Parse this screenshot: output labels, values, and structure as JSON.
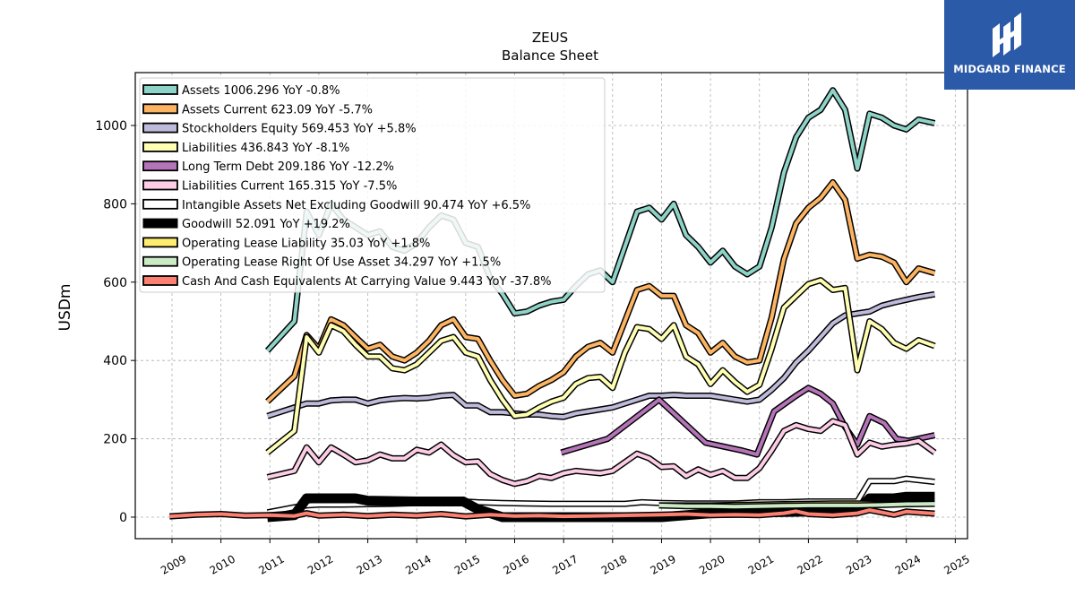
{
  "chart_data": {
    "type": "line",
    "title": "ZEUS",
    "subtitle": "Balance  Sheet",
    "xlabel": "",
    "ylabel": "USDm",
    "xlim": [
      2008.25,
      2025.25
    ],
    "ylim": [
      -55,
      1135
    ],
    "yticks": [
      0,
      200,
      400,
      600,
      800,
      1000
    ],
    "xticks": [
      "2009",
      "2010",
      "2011",
      "2012",
      "2013",
      "2014",
      "2015",
      "2016",
      "2017",
      "2018",
      "2019",
      "2020",
      "2021",
      "2022",
      "2023",
      "2024",
      "2025"
    ],
    "grid": true,
    "legend_position": "top-left",
    "series": [
      {
        "name": "Assets  1006.296 YoY -0.8%",
        "color": "#8dd3c7",
        "x": [
          2010.95,
          2011.5,
          2011.75,
          2012.0,
          2012.25,
          2012.5,
          2012.75,
          2013.0,
          2013.25,
          2013.5,
          2013.75,
          2014.0,
          2014.25,
          2014.5,
          2014.75,
          2015.0,
          2015.25,
          2015.5,
          2015.75,
          2016.0,
          2016.25,
          2016.5,
          2016.75,
          2017.0,
          2017.25,
          2017.5,
          2017.75,
          2018.0,
          2018.5,
          2018.75,
          2019.0,
          2019.25,
          2019.5,
          2019.75,
          2020.0,
          2020.25,
          2020.5,
          2020.75,
          2021.0,
          2021.25,
          2021.5,
          2021.75,
          2022.0,
          2022.25,
          2022.5,
          2022.75,
          2023.0,
          2023.25,
          2023.5,
          2023.75,
          2024.0,
          2024.25,
          2024.58
        ],
        "y": [
          425,
          500,
          780,
          720,
          800,
          760,
          740,
          720,
          730,
          690,
          680,
          700,
          740,
          770,
          760,
          700,
          690,
          610,
          570,
          520,
          525,
          540,
          550,
          555,
          590,
          620,
          630,
          600,
          780,
          790,
          760,
          800,
          720,
          690,
          650,
          680,
          640,
          620,
          640,
          740,
          880,
          970,
          1020,
          1040,
          1090,
          1040,
          890,
          1030,
          1020,
          1000,
          990,
          1015,
          1006
        ]
      },
      {
        "name": "Assets Current  623.09 YoY -5.7%",
        "color": "#fdb462",
        "x": [
          2010.95,
          2011.5,
          2011.75,
          2012.0,
          2012.25,
          2012.5,
          2012.75,
          2013.0,
          2013.25,
          2013.5,
          2013.75,
          2014.0,
          2014.25,
          2014.5,
          2014.75,
          2015.0,
          2015.25,
          2015.5,
          2015.75,
          2016.0,
          2016.25,
          2016.5,
          2016.75,
          2017.0,
          2017.25,
          2017.5,
          2017.75,
          2018.0,
          2018.25,
          2018.5,
          2018.75,
          2019.0,
          2019.25,
          2019.5,
          2019.75,
          2020.0,
          2020.25,
          2020.5,
          2020.75,
          2021.0,
          2021.25,
          2021.5,
          2021.75,
          2022.0,
          2022.25,
          2022.5,
          2022.75,
          2023.0,
          2023.25,
          2023.5,
          2023.75,
          2024.0,
          2024.25,
          2024.58
        ],
        "y": [
          295,
          360,
          465,
          430,
          505,
          490,
          460,
          430,
          440,
          410,
          400,
          420,
          450,
          490,
          505,
          460,
          455,
          400,
          350,
          310,
          315,
          335,
          350,
          370,
          410,
          435,
          445,
          420,
          500,
          580,
          590,
          565,
          565,
          490,
          470,
          420,
          445,
          410,
          395,
          400,
          510,
          660,
          750,
          790,
          815,
          855,
          810,
          660,
          670,
          665,
          650,
          600,
          635,
          623
        ]
      },
      {
        "name": "Stockholders Equity  569.453 YoY +5.8%",
        "color": "#bebada",
        "x": [
          2010.95,
          2011.5,
          2011.75,
          2012.0,
          2012.25,
          2012.5,
          2012.75,
          2013.0,
          2013.25,
          2013.5,
          2013.75,
          2014.0,
          2014.25,
          2014.5,
          2014.75,
          2015.0,
          2015.25,
          2015.5,
          2015.75,
          2016.0,
          2016.25,
          2016.5,
          2016.75,
          2017.0,
          2017.25,
          2017.5,
          2017.75,
          2018.0,
          2018.25,
          2018.5,
          2018.75,
          2019.0,
          2019.25,
          2019.5,
          2019.75,
          2020.0,
          2020.25,
          2020.5,
          2020.75,
          2021.0,
          2021.25,
          2021.5,
          2021.75,
          2022.0,
          2022.25,
          2022.5,
          2022.75,
          2023.0,
          2023.25,
          2023.5,
          2023.75,
          2024.0,
          2024.25,
          2024.58
        ],
        "y": [
          258,
          280,
          290,
          290,
          298,
          300,
          300,
          290,
          298,
          302,
          304,
          303,
          305,
          310,
          312,
          285,
          285,
          268,
          268,
          265,
          262,
          262,
          258,
          256,
          265,
          270,
          275,
          280,
          290,
          300,
          310,
          310,
          312,
          310,
          310,
          310,
          305,
          300,
          295,
          300,
          325,
          355,
          395,
          425,
          460,
          495,
          515,
          520,
          525,
          540,
          548,
          555,
          562,
          569
        ]
      },
      {
        "name": "Liabilities  436.843 YoY -8.1%",
        "color": "#ffffb3",
        "x": [
          2010.95,
          2011.5,
          2011.75,
          2012.0,
          2012.25,
          2012.5,
          2012.75,
          2013.0,
          2013.25,
          2013.5,
          2013.75,
          2014.0,
          2014.25,
          2014.5,
          2014.75,
          2015.0,
          2015.25,
          2015.5,
          2015.75,
          2016.0,
          2016.25,
          2016.5,
          2016.75,
          2017.0,
          2017.25,
          2017.5,
          2017.75,
          2018.0,
          2018.25,
          2018.5,
          2018.75,
          2019.0,
          2019.25,
          2019.5,
          2019.75,
          2020.0,
          2020.25,
          2020.5,
          2020.75,
          2021.0,
          2021.25,
          2021.5,
          2021.75,
          2022.0,
          2022.25,
          2022.5,
          2022.75,
          2023.0,
          2023.25,
          2023.5,
          2023.75,
          2024.0,
          2024.25,
          2024.58
        ],
        "y": [
          165,
          220,
          460,
          420,
          490,
          475,
          440,
          410,
          410,
          380,
          375,
          390,
          420,
          450,
          460,
          420,
          410,
          350,
          300,
          258,
          262,
          280,
          295,
          305,
          340,
          355,
          358,
          330,
          420,
          485,
          480,
          455,
          490,
          410,
          390,
          340,
          375,
          345,
          320,
          338,
          430,
          535,
          565,
          595,
          605,
          580,
          585,
          375,
          500,
          480,
          445,
          430,
          452,
          437
        ]
      },
      {
        "name": "Long Term Debt  209.186 YoY -12.2%",
        "color": "#b573b8",
        "x": [
          2016.95,
          2017.9,
          2018.95,
          2019.9,
          2020.65,
          2020.95,
          2021.3,
          2021.75,
          2022.0,
          2022.25,
          2022.5,
          2022.75,
          2023.0,
          2023.25,
          2023.55,
          2023.8,
          2024.05,
          2024.58
        ],
        "y": [
          165,
          200,
          300,
          190,
          170,
          160,
          270,
          310,
          330,
          315,
          290,
          230,
          185,
          258,
          240,
          200,
          195,
          209
        ]
      },
      {
        "name": "Liabilities Current  165.315 YoY -7.5%",
        "color": "#fccde5",
        "x": [
          2010.95,
          2011.5,
          2011.75,
          2012.0,
          2012.25,
          2012.5,
          2012.75,
          2013.0,
          2013.25,
          2013.5,
          2013.75,
          2014.0,
          2014.25,
          2014.5,
          2014.75,
          2015.0,
          2015.25,
          2015.5,
          2015.75,
          2016.0,
          2016.25,
          2016.5,
          2016.75,
          2017.0,
          2017.25,
          2017.5,
          2017.75,
          2018.0,
          2018.25,
          2018.5,
          2018.75,
          2019.0,
          2019.25,
          2019.5,
          2019.75,
          2020.0,
          2020.25,
          2020.5,
          2020.75,
          2021.0,
          2021.25,
          2021.5,
          2021.75,
          2022.0,
          2022.25,
          2022.5,
          2022.75,
          2023.0,
          2023.25,
          2023.5,
          2023.75,
          2024.0,
          2024.25,
          2024.58
        ],
        "y": [
          102,
          118,
          178,
          140,
          178,
          160,
          140,
          145,
          160,
          150,
          150,
          172,
          165,
          185,
          158,
          140,
          142,
          110,
          95,
          85,
          92,
          105,
          100,
          112,
          118,
          115,
          112,
          118,
          140,
          162,
          150,
          128,
          130,
          105,
          122,
          108,
          118,
          100,
          100,
          125,
          170,
          220,
          235,
          225,
          220,
          245,
          235,
          160,
          190,
          180,
          185,
          188,
          195,
          165
        ]
      },
      {
        "name": "Intangible Assets Net Excluding Goodwill  90.474 YoY +6.5%",
        "color": "#ffffff",
        "x": [
          2010.95,
          2011.5,
          2011.75,
          2012.0,
          2012.5,
          2013.0,
          2013.5,
          2014.0,
          2014.5,
          2014.95,
          2015.25,
          2015.75,
          2016.25,
          2016.75,
          2017.25,
          2017.75,
          2018.25,
          2018.6,
          2019.0,
          2019.5,
          2020.0,
          2020.5,
          2021.0,
          2021.5,
          2022.0,
          2022.5,
          2023.0,
          2023.25,
          2023.75,
          2024.0,
          2024.58
        ],
        "y": [
          12,
          25,
          30,
          32,
          32,
          33,
          34,
          36,
          38,
          40,
          38,
          36,
          35,
          34,
          34,
          34,
          34,
          38,
          36,
          35,
          35,
          35,
          38,
          38,
          40,
          40,
          40,
          92,
          92,
          98,
          90
        ]
      },
      {
        "name": "Goodwill  52.091 YoY +19.2%",
        "color": "#000000",
        "x": [
          2010.95,
          2011.5,
          2011.75,
          2012.75,
          2013.0,
          2014.0,
          2014.95,
          2015.25,
          2015.75,
          2019.0,
          2020.0,
          2021.0,
          2022.0,
          2023.0,
          2023.25,
          2023.75,
          2024.0,
          2024.58
        ],
        "y": [
          0,
          5,
          48,
          48,
          42,
          40,
          40,
          20,
          0,
          0,
          10,
          12,
          14,
          16,
          48,
          48,
          52,
          52
        ]
      },
      {
        "name": "Operating Lease Liability  35.03 YoY +1.8%",
        "color": "#ffed6f",
        "x": [
          2018.95,
          2019.5,
          2020.0,
          2020.5,
          2021.0,
          2021.5,
          2022.0,
          2022.5,
          2023.0,
          2023.5,
          2024.0,
          2024.58
        ],
        "y": [
          30,
          30,
          30,
          31,
          32,
          33,
          34,
          35,
          35,
          34,
          34,
          35
        ]
      },
      {
        "name": "Operating Lease Right Of Use Asset  34.297 YoY +1.5%",
        "color": "#ccebc5",
        "x": [
          2018.95,
          2019.5,
          2020.0,
          2020.5,
          2021.0,
          2021.5,
          2022.0,
          2022.5,
          2023.0,
          2023.5,
          2024.0,
          2024.58
        ],
        "y": [
          30,
          28,
          28,
          27,
          28,
          29,
          30,
          30,
          30,
          31,
          33,
          34
        ]
      },
      {
        "name": "Cash And Cash Equivalents At Carrying Value  9.443 YoY -37.8%",
        "color": "#fb8072",
        "x": [
          2008.95,
          2009.5,
          2010.0,
          2010.5,
          2011.0,
          2011.5,
          2011.75,
          2012.0,
          2012.5,
          2013.0,
          2013.5,
          2014.0,
          2014.5,
          2015.0,
          2015.5,
          2016.0,
          2016.5,
          2017.0,
          2017.5,
          2018.0,
          2018.5,
          2019.0,
          2019.5,
          2020.0,
          2020.5,
          2021.0,
          2021.5,
          2021.75,
          2022.0,
          2022.5,
          2023.0,
          2023.25,
          2023.5,
          2023.75,
          2024.0,
          2024.58
        ],
        "y": [
          2,
          6,
          8,
          4,
          5,
          3,
          10,
          4,
          6,
          3,
          6,
          4,
          8,
          2,
          6,
          3,
          4,
          2,
          3,
          4,
          5,
          6,
          8,
          5,
          6,
          5,
          10,
          15,
          8,
          5,
          10,
          18,
          12,
          6,
          14,
          9
        ]
      }
    ]
  },
  "logo": {
    "text": "MIDGARD FINANCE"
  }
}
